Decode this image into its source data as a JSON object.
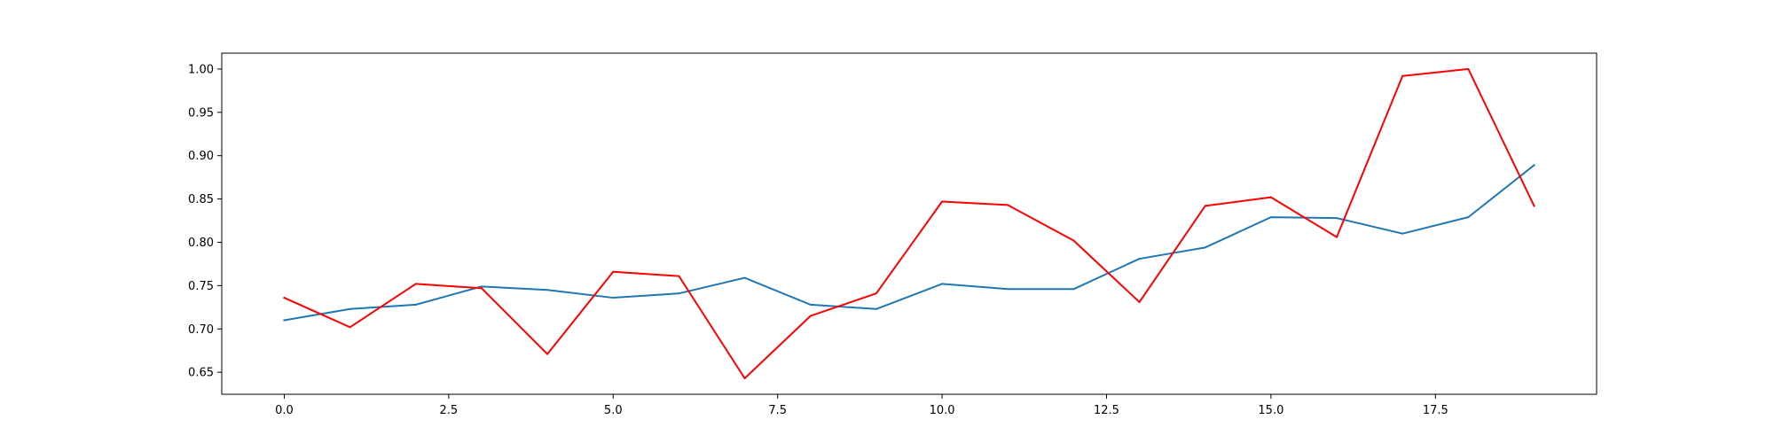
{
  "chart_data": {
    "type": "line",
    "title": "",
    "xlabel": "",
    "ylabel": "",
    "xlim": [
      -0.95,
      19.95
    ],
    "ylim": [
      0.6246,
      1.0183
    ],
    "grid": false,
    "legend": "none",
    "x": [
      0,
      1,
      2,
      3,
      4,
      5,
      6,
      7,
      8,
      9,
      10,
      11,
      12,
      13,
      14,
      15,
      16,
      17,
      18,
      19
    ],
    "x_ticks": [
      0.0,
      2.5,
      5.0,
      7.5,
      10.0,
      12.5,
      15.0,
      17.5
    ],
    "x_tick_labels": [
      "0.0",
      "2.5",
      "5.0",
      "7.5",
      "10.0",
      "12.5",
      "15.0",
      "17.5"
    ],
    "y_ticks": [
      0.65,
      0.7,
      0.75,
      0.8,
      0.85,
      0.9,
      0.95,
      1.0
    ],
    "y_tick_labels": [
      "0.65",
      "0.70",
      "0.75",
      "0.80",
      "0.85",
      "0.90",
      "0.95",
      "1.00"
    ],
    "series": [
      {
        "color": "#1f77b4",
        "values": [
          0.71,
          0.723,
          0.728,
          0.749,
          0.745,
          0.736,
          0.741,
          0.759,
          0.728,
          0.723,
          0.752,
          0.746,
          0.746,
          0.781,
          0.794,
          0.829,
          0.828,
          0.81,
          0.829,
          0.889
        ]
      },
      {
        "color": "#ff0000",
        "values": [
          0.736,
          0.702,
          0.752,
          0.747,
          0.671,
          0.766,
          0.761,
          0.643,
          0.715,
          0.741,
          0.847,
          0.843,
          0.802,
          0.731,
          0.842,
          0.852,
          0.806,
          0.992,
          1.0,
          0.842
        ]
      }
    ]
  }
}
